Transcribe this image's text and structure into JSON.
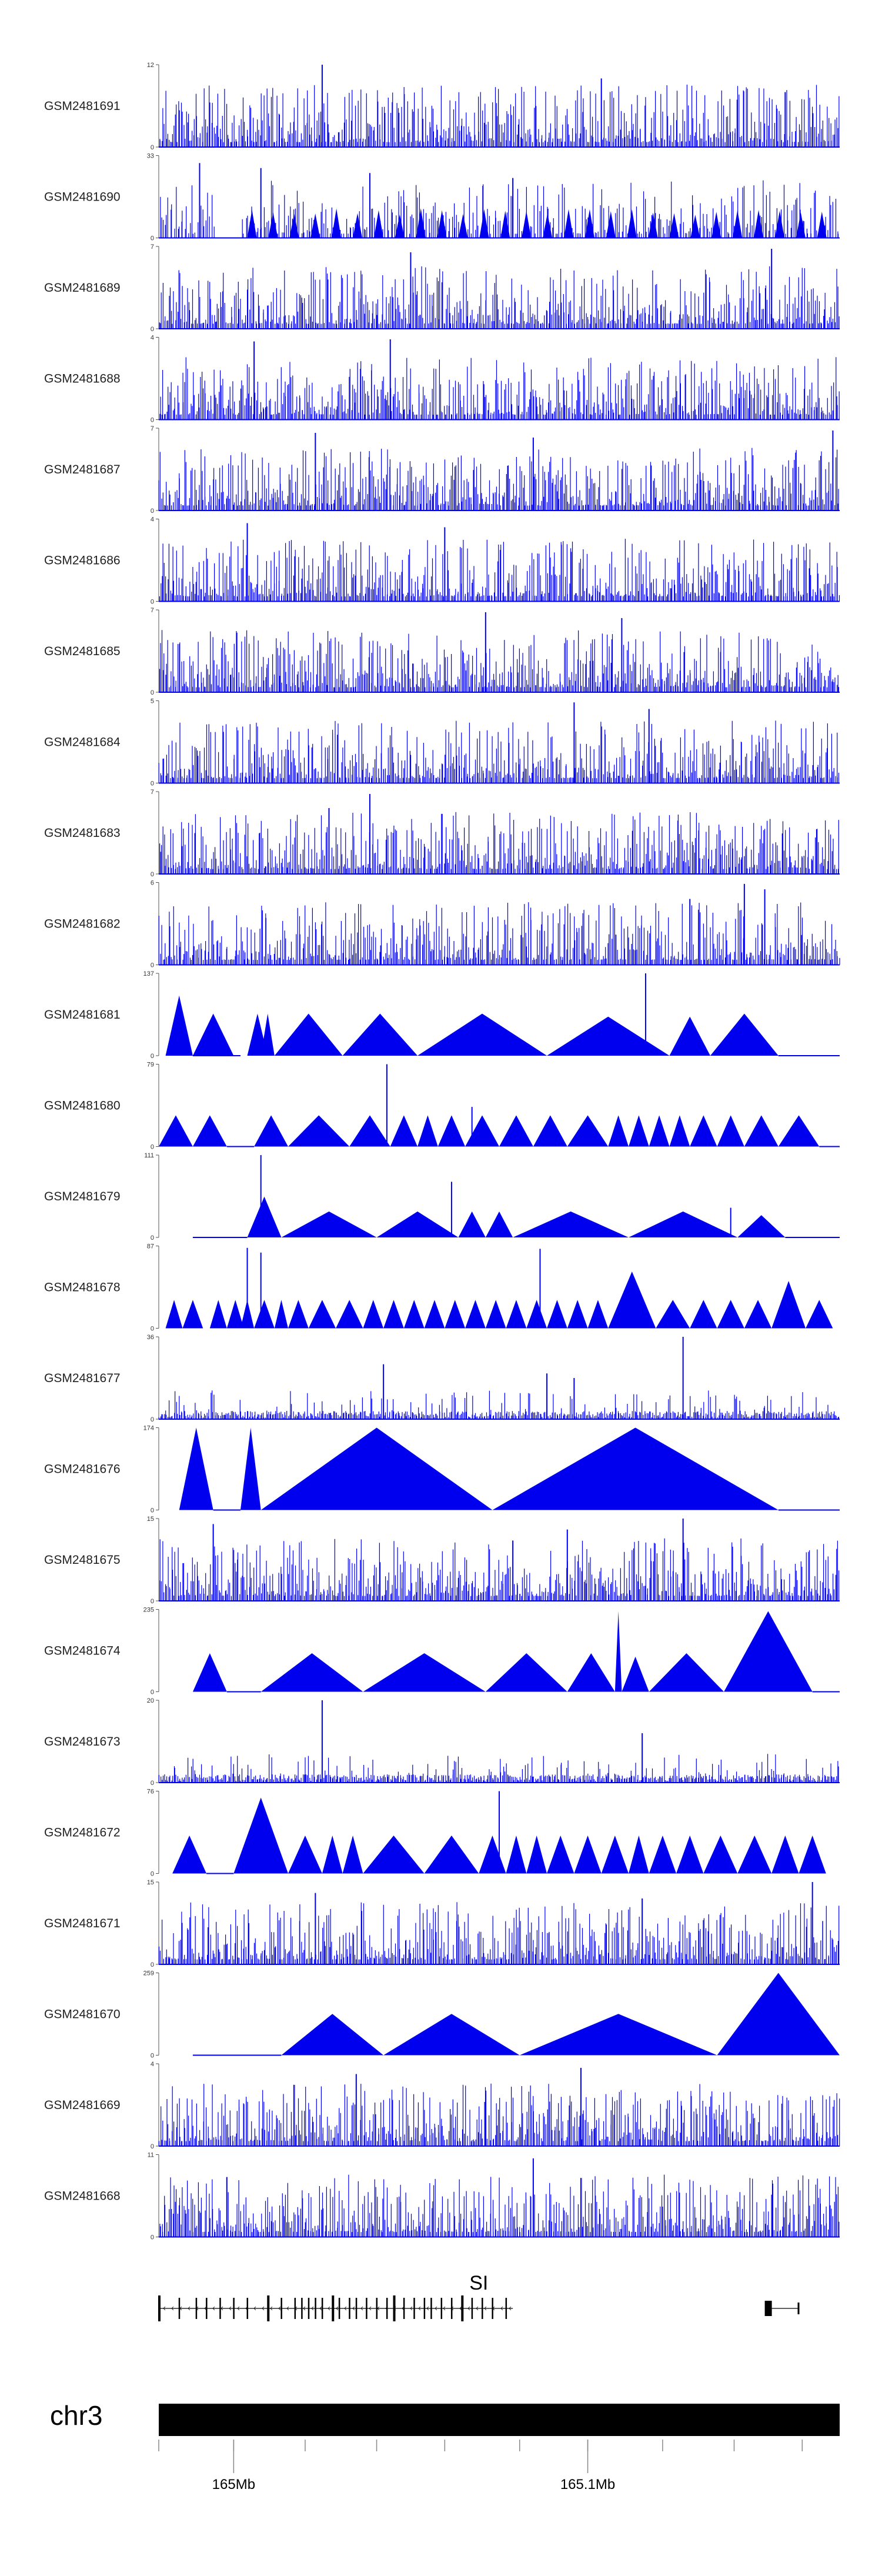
{
  "chart_data": {
    "type": "area",
    "title": "",
    "colors": {
      "signal": "#0000ee",
      "gene": "#000000",
      "ideogram": "#000000",
      "axis": "#333333"
    },
    "tracks": [
      {
        "name": "GSM2481691",
        "ymax": 12,
        "ymin": 0,
        "style": "dense",
        "seed": 11,
        "peaks": [
          [
            0.24,
            12
          ],
          [
            0.65,
            10
          ],
          [
            0.92,
            8
          ]
        ]
      },
      {
        "name": "GSM2481690",
        "ymax": 33,
        "ymin": 0,
        "style": "spiky",
        "seed": 23,
        "gaps": [
          [
            0.08,
            0.12
          ]
        ],
        "peaks": [
          [
            0.06,
            30
          ],
          [
            0.15,
            28
          ],
          [
            0.31,
            26
          ],
          [
            0.52,
            24
          ]
        ]
      },
      {
        "name": "GSM2481689",
        "ymax": 7,
        "ymin": 0,
        "style": "dense",
        "seed": 31,
        "peaks": [
          [
            0.37,
            6.5
          ],
          [
            0.9,
            6.8
          ]
        ]
      },
      {
        "name": "GSM2481688",
        "ymax": 4,
        "ymin": 0,
        "style": "dense",
        "seed": 41,
        "peaks": [
          [
            0.14,
            3.8
          ],
          [
            0.34,
            3.9
          ]
        ]
      },
      {
        "name": "GSM2481687",
        "ymax": 7,
        "ymin": 0,
        "style": "dense",
        "seed": 53,
        "peaks": [
          [
            0.23,
            6.6
          ],
          [
            0.55,
            6.2
          ],
          [
            0.99,
            6.8
          ]
        ]
      },
      {
        "name": "GSM2481686",
        "ymax": 4,
        "ymin": 0,
        "style": "dense",
        "seed": 61,
        "peaks": [
          [
            0.13,
            3.8
          ],
          [
            0.42,
            3.6
          ]
        ]
      },
      {
        "name": "GSM2481685",
        "ymax": 7,
        "ymin": 0,
        "style": "dense",
        "seed": 73,
        "peaks": [
          [
            0.48,
            6.8
          ],
          [
            0.68,
            6.3
          ]
        ]
      },
      {
        "name": "GSM2481684",
        "ymax": 5,
        "ymin": 0,
        "style": "dense",
        "seed": 83,
        "peaks": [
          [
            0.61,
            4.9
          ],
          [
            0.72,
            4.5
          ]
        ]
      },
      {
        "name": "GSM2481683",
        "ymax": 7,
        "ymin": 0,
        "style": "dense",
        "seed": 97,
        "peaks": [
          [
            0.31,
            6.8
          ],
          [
            0.25,
            5.6
          ]
        ]
      },
      {
        "name": "GSM2481682",
        "ymax": 6,
        "ymin": 0,
        "style": "dense",
        "seed": 101,
        "peaks": [
          [
            0.86,
            5.9
          ],
          [
            0.89,
            5.5
          ],
          [
            0.78,
            4.8
          ]
        ]
      },
      {
        "name": "GSM2481681",
        "ymax": 137,
        "ymin": 0,
        "style": "tri",
        "seed": 0,
        "tri": [
          [
            0.01,
            0.05,
            100
          ],
          [
            0.05,
            0.11,
            70
          ],
          [
            0.13,
            0.16,
            70
          ],
          [
            0.15,
            0.17,
            70
          ],
          [
            0.17,
            0.27,
            70
          ],
          [
            0.27,
            0.38,
            70
          ],
          [
            0.38,
            0.57,
            70
          ],
          [
            0.57,
            0.75,
            65
          ],
          [
            0.75,
            0.81,
            65
          ],
          [
            0.81,
            0.91,
            70
          ]
        ],
        "peaks": [
          [
            0.715,
            137
          ]
        ],
        "flat": [
          [
            0.05,
            0.12
          ],
          [
            0.91,
            1.0
          ]
        ]
      },
      {
        "name": "GSM2481680",
        "ymax": 79,
        "ymin": 0,
        "style": "tri",
        "seed": 0,
        "tri": [
          [
            0.0,
            0.05,
            30
          ],
          [
            0.05,
            0.1,
            30
          ],
          [
            0.14,
            0.19,
            30
          ],
          [
            0.19,
            0.28,
            30
          ],
          [
            0.28,
            0.34,
            30
          ],
          [
            0.34,
            0.38,
            30
          ],
          [
            0.38,
            0.41,
            30
          ],
          [
            0.41,
            0.45,
            30
          ],
          [
            0.45,
            0.5,
            30
          ],
          [
            0.5,
            0.55,
            30
          ],
          [
            0.55,
            0.6,
            30
          ],
          [
            0.6,
            0.66,
            30
          ],
          [
            0.66,
            0.69,
            30
          ],
          [
            0.69,
            0.72,
            30
          ],
          [
            0.72,
            0.75,
            30
          ],
          [
            0.75,
            0.78,
            30
          ],
          [
            0.78,
            0.82,
            30
          ],
          [
            0.82,
            0.86,
            30
          ],
          [
            0.86,
            0.91,
            30
          ],
          [
            0.91,
            0.97,
            30
          ]
        ],
        "peaks": [
          [
            0.335,
            79
          ],
          [
            0.46,
            38
          ]
        ],
        "flat": [
          [
            0.1,
            0.14
          ],
          [
            0.97,
            1.0
          ]
        ]
      },
      {
        "name": "GSM2481679",
        "ymax": 111,
        "ymin": 0,
        "style": "tri",
        "seed": 0,
        "tri": [
          [
            0.13,
            0.18,
            55
          ],
          [
            0.18,
            0.32,
            35
          ],
          [
            0.32,
            0.44,
            35
          ],
          [
            0.44,
            0.48,
            35
          ],
          [
            0.48,
            0.52,
            35
          ],
          [
            0.52,
            0.69,
            35
          ],
          [
            0.69,
            0.85,
            35
          ],
          [
            0.85,
            0.92,
            30
          ]
        ],
        "peaks": [
          [
            0.15,
            111
          ],
          [
            0.43,
            75
          ],
          [
            0.84,
            40
          ]
        ],
        "flat": [
          [
            0.05,
            0.13
          ],
          [
            0.92,
            1.0
          ]
        ]
      },
      {
        "name": "GSM2481678",
        "ymax": 87,
        "ymin": 0,
        "style": "tri",
        "seed": 0,
        "tri": [
          [
            0.01,
            0.035,
            30
          ],
          [
            0.035,
            0.065,
            30
          ],
          [
            0.075,
            0.1,
            30
          ],
          [
            0.1,
            0.125,
            30
          ],
          [
            0.12,
            0.14,
            30
          ],
          [
            0.14,
            0.17,
            30
          ],
          [
            0.17,
            0.19,
            30
          ],
          [
            0.19,
            0.22,
            30
          ],
          [
            0.22,
            0.26,
            30
          ],
          [
            0.26,
            0.3,
            30
          ],
          [
            0.3,
            0.33,
            30
          ],
          [
            0.33,
            0.36,
            30
          ],
          [
            0.36,
            0.39,
            30
          ],
          [
            0.39,
            0.42,
            30
          ],
          [
            0.42,
            0.45,
            30
          ],
          [
            0.45,
            0.48,
            30
          ],
          [
            0.48,
            0.51,
            30
          ],
          [
            0.51,
            0.54,
            30
          ],
          [
            0.54,
            0.57,
            30
          ],
          [
            0.57,
            0.6,
            30
          ],
          [
            0.6,
            0.63,
            30
          ],
          [
            0.63,
            0.66,
            30
          ],
          [
            0.66,
            0.73,
            60
          ],
          [
            0.73,
            0.78,
            30
          ],
          [
            0.78,
            0.82,
            30
          ],
          [
            0.82,
            0.86,
            30
          ],
          [
            0.86,
            0.9,
            30
          ],
          [
            0.9,
            0.95,
            50
          ],
          [
            0.95,
            0.99,
            30
          ]
        ],
        "peaks": [
          [
            0.13,
            85
          ],
          [
            0.15,
            80
          ],
          [
            0.56,
            84
          ]
        ],
        "flat": []
      },
      {
        "name": "GSM2481677",
        "ymax": 36,
        "ymin": 0,
        "style": "sparse",
        "seed": 113,
        "peaks": [
          [
            0.33,
            24
          ],
          [
            0.57,
            20
          ],
          [
            0.61,
            18
          ],
          [
            0.77,
            36
          ]
        ]
      },
      {
        "name": "GSM2481676",
        "ymax": 174,
        "ymin": 0,
        "style": "tri",
        "seed": 0,
        "tri": [
          [
            0.03,
            0.08,
            174
          ],
          [
            0.12,
            0.15,
            174
          ],
          [
            0.15,
            0.49,
            174
          ],
          [
            0.49,
            0.91,
            174
          ]
        ],
        "peaks": [],
        "flat": [
          [
            0.08,
            0.12
          ],
          [
            0.91,
            1.0
          ]
        ]
      },
      {
        "name": "GSM2481675",
        "ymax": 15,
        "ymin": 0,
        "style": "dense",
        "seed": 127,
        "peaks": [
          [
            0.08,
            14
          ],
          [
            0.6,
            13
          ],
          [
            0.77,
            15
          ],
          [
            0.52,
            11
          ]
        ]
      },
      {
        "name": "GSM2481674",
        "ymax": 235,
        "ymin": 0,
        "style": "tri",
        "seed": 0,
        "tri": [
          [
            0.05,
            0.1,
            110
          ],
          [
            0.15,
            0.3,
            110
          ],
          [
            0.3,
            0.48,
            110
          ],
          [
            0.48,
            0.6,
            110
          ],
          [
            0.6,
            0.67,
            110
          ],
          [
            0.67,
            0.68,
            230
          ],
          [
            0.68,
            0.72,
            100
          ],
          [
            0.72,
            0.83,
            110
          ],
          [
            0.83,
            0.96,
            230
          ]
        ],
        "peaks": [],
        "flat": [
          [
            0.1,
            0.15
          ],
          [
            0.96,
            1.0
          ]
        ]
      },
      {
        "name": "GSM2481673",
        "ymax": 20,
        "ymin": 0,
        "style": "sparse",
        "seed": 131,
        "peaks": [
          [
            0.24,
            20
          ],
          [
            0.71,
            12
          ]
        ]
      },
      {
        "name": "GSM2481672",
        "ymax": 76,
        "ymin": 0,
        "style": "tri",
        "seed": 0,
        "tri": [
          [
            0.02,
            0.07,
            35
          ],
          [
            0.11,
            0.19,
            70
          ],
          [
            0.19,
            0.24,
            35
          ],
          [
            0.24,
            0.27,
            35
          ],
          [
            0.27,
            0.3,
            35
          ],
          [
            0.3,
            0.39,
            35
          ],
          [
            0.39,
            0.47,
            35
          ],
          [
            0.47,
            0.51,
            35
          ],
          [
            0.51,
            0.54,
            35
          ],
          [
            0.54,
            0.57,
            35
          ],
          [
            0.57,
            0.61,
            35
          ],
          [
            0.61,
            0.65,
            35
          ],
          [
            0.65,
            0.69,
            35
          ],
          [
            0.69,
            0.72,
            35
          ],
          [
            0.72,
            0.76,
            35
          ],
          [
            0.76,
            0.8,
            35
          ],
          [
            0.8,
            0.85,
            35
          ],
          [
            0.85,
            0.9,
            35
          ],
          [
            0.9,
            0.94,
            35
          ],
          [
            0.94,
            0.98,
            35
          ]
        ],
        "peaks": [
          [
            0.5,
            76
          ]
        ],
        "flat": [
          [
            0.07,
            0.11
          ]
        ]
      },
      {
        "name": "GSM2481671",
        "ymax": 15,
        "ymin": 0,
        "style": "dense",
        "seed": 137,
        "peaks": [
          [
            0.23,
            13
          ],
          [
            0.71,
            12
          ],
          [
            0.96,
            15
          ]
        ]
      },
      {
        "name": "GSM2481670",
        "ymax": 259,
        "ymin": 0,
        "style": "tri",
        "seed": 0,
        "tri": [
          [
            0.18,
            0.33,
            130
          ],
          [
            0.33,
            0.53,
            130
          ],
          [
            0.53,
            0.82,
            130
          ],
          [
            0.82,
            1.0,
            259
          ]
        ],
        "peaks": [],
        "flat": [
          [
            0.05,
            0.18
          ]
        ]
      },
      {
        "name": "GSM2481669",
        "ymax": 4,
        "ymin": 0,
        "style": "dense",
        "seed": 149,
        "peaks": [
          [
            0.62,
            3.8
          ],
          [
            0.29,
            3.5
          ]
        ]
      },
      {
        "name": "GSM2481668",
        "ymax": 11,
        "ymin": 0,
        "style": "dense",
        "seed": 157,
        "peaks": [
          [
            0.55,
            10.5
          ],
          [
            0.1,
            8
          ]
        ]
      }
    ],
    "gene": {
      "symbol": "SI",
      "strand": "-",
      "main_start": 0.0,
      "main_end": 0.52,
      "exons": [
        0.0,
        0.03,
        0.055,
        0.07,
        0.09,
        0.11,
        0.13,
        0.16,
        0.18,
        0.2,
        0.21,
        0.22,
        0.23,
        0.24,
        0.255,
        0.265,
        0.28,
        0.29,
        0.305,
        0.32,
        0.335,
        0.345,
        0.36,
        0.375,
        0.39,
        0.4,
        0.415,
        0.43,
        0.445,
        0.46,
        0.475,
        0.49,
        0.51
      ],
      "small_gene": {
        "start": 0.89,
        "end": 0.94
      }
    },
    "ideogram": {
      "chromosome": "chr3",
      "tick_labels": [
        "165Mb",
        "165.1Mb"
      ],
      "tick_positions": [
        0.11,
        0.63
      ],
      "minor_ticks": [
        0.0,
        0.11,
        0.215,
        0.32,
        0.42,
        0.53,
        0.63,
        0.74,
        0.845,
        0.945
      ]
    }
  }
}
